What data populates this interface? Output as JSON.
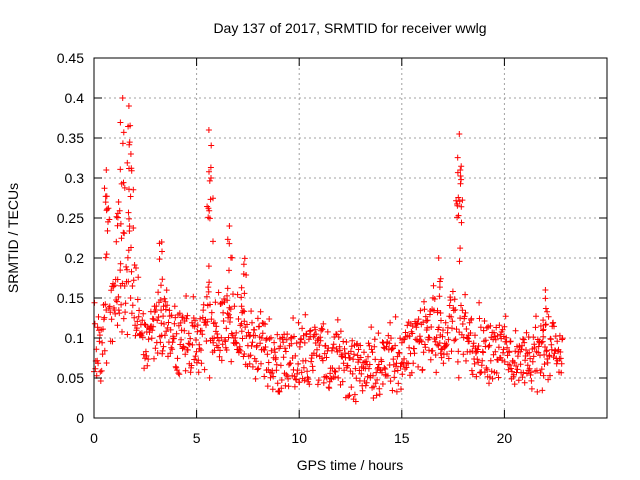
{
  "chart_data": {
    "type": "scatter",
    "title": "Day 137 of 2017, SRMTID for receiver wwlg",
    "xlabel": "GPS time / hours",
    "ylabel": "SRMTID / TECUs",
    "xlim": [
      0,
      25
    ],
    "ylim": [
      0,
      0.45
    ],
    "x_ticks": [
      0,
      5,
      10,
      15,
      20
    ],
    "y_ticks": [
      0,
      0.05,
      0.1,
      0.15,
      0.2,
      0.25,
      0.3,
      0.35,
      0.4,
      0.45
    ],
    "x_tick_labels": [
      "0",
      "5",
      "10",
      "15",
      "20"
    ],
    "y_tick_labels": [
      "0",
      "0.05",
      "0.1",
      "0.15",
      "0.2",
      "0.25",
      "0.3",
      "0.35",
      "0.4",
      "0.45"
    ],
    "grid": true,
    "marker": "+",
    "series": [
      {
        "name": "SRMTID",
        "color": "#ff0000",
        "envelope_note": "dense points every ~0.02 h from 0 to ~22.8 h; y baseline envelope by hour",
        "baseline": [
          {
            "x": 0.0,
            "y": 0.09
          },
          {
            "x": 0.5,
            "y": 0.08
          },
          {
            "x": 1.0,
            "y": 0.14
          },
          {
            "x": 1.5,
            "y": 0.17
          },
          {
            "x": 2.0,
            "y": 0.14
          },
          {
            "x": 2.5,
            "y": 0.09
          },
          {
            "x": 3.0,
            "y": 0.1
          },
          {
            "x": 3.5,
            "y": 0.12
          },
          {
            "x": 4.0,
            "y": 0.09
          },
          {
            "x": 5.0,
            "y": 0.09
          },
          {
            "x": 5.5,
            "y": 0.1
          },
          {
            "x": 6.0,
            "y": 0.1
          },
          {
            "x": 6.5,
            "y": 0.12
          },
          {
            "x": 7.0,
            "y": 0.1
          },
          {
            "x": 8.0,
            "y": 0.08
          },
          {
            "x": 9.0,
            "y": 0.065
          },
          {
            "x": 10.0,
            "y": 0.075
          },
          {
            "x": 11.0,
            "y": 0.08
          },
          {
            "x": 12.0,
            "y": 0.065
          },
          {
            "x": 13.0,
            "y": 0.055
          },
          {
            "x": 13.5,
            "y": 0.05
          },
          {
            "x": 14.0,
            "y": 0.07
          },
          {
            "x": 15.0,
            "y": 0.07
          },
          {
            "x": 16.0,
            "y": 0.09
          },
          {
            "x": 16.5,
            "y": 0.11
          },
          {
            "x": 17.0,
            "y": 0.09
          },
          {
            "x": 17.8,
            "y": 0.12
          },
          {
            "x": 18.5,
            "y": 0.08
          },
          {
            "x": 19.5,
            "y": 0.08
          },
          {
            "x": 20.5,
            "y": 0.07
          },
          {
            "x": 21.5,
            "y": 0.065
          },
          {
            "x": 22.0,
            "y": 0.08
          },
          {
            "x": 22.8,
            "y": 0.07
          }
        ],
        "peaks": [
          {
            "x": 0.6,
            "y": 0.31
          },
          {
            "x": 1.2,
            "y": 0.27
          },
          {
            "x": 1.4,
            "y": 0.4
          },
          {
            "x": 1.7,
            "y": 0.39
          },
          {
            "x": 1.8,
            "y": 0.33
          },
          {
            "x": 3.3,
            "y": 0.22
          },
          {
            "x": 5.6,
            "y": 0.36
          },
          {
            "x": 5.7,
            "y": 0.3
          },
          {
            "x": 6.6,
            "y": 0.24
          },
          {
            "x": 7.3,
            "y": 0.18
          },
          {
            "x": 16.8,
            "y": 0.2
          },
          {
            "x": 17.8,
            "y": 0.355
          },
          {
            "x": 17.85,
            "y": 0.31
          },
          {
            "x": 22.0,
            "y": 0.16
          }
        ]
      }
    ]
  }
}
